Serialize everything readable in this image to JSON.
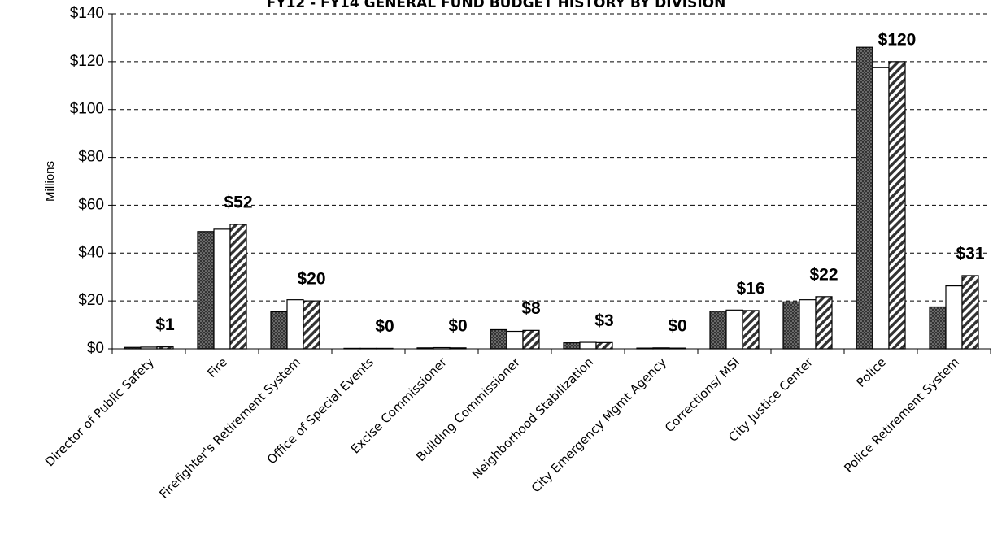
{
  "chart_data": {
    "type": "bar",
    "title": "FY12 - FY14 GENERAL FUND BUDGET HISTORY BY DIVISION",
    "y_label": "Millions",
    "categories": [
      "Director of Public Safety",
      "Fire",
      "Firefighter's Retirement System",
      "Office of Special Events",
      "Excise Commissioner",
      "Building Commissioner",
      "Neighborhood Stabilization",
      "City Emergency Mgmt Agency",
      "Corrections/ MSI",
      "City Justice Center",
      "Police",
      "Police Retirement System"
    ],
    "series": [
      {
        "color": "#555555",
        "pattern": "dots",
        "values": [
          0.6,
          49,
          15.5,
          0.2,
          0.4,
          8,
          2.5,
          0.3,
          15.7,
          19.6,
          126,
          17.5
        ]
      },
      {
        "color": "#ffffff",
        "pattern": "none",
        "values": [
          0.7,
          50,
          20.5,
          0.2,
          0.5,
          7.3,
          2.7,
          0.4,
          16.2,
          20.5,
          117.5,
          26.3
        ]
      },
      {
        "color": "#444444",
        "pattern": "hatch",
        "values": [
          0.8,
          52,
          20,
          0.2,
          0.4,
          7.7,
          2.6,
          0.3,
          16,
          21.8,
          120,
          30.6
        ],
        "value_labels": [
          "$1",
          "$52",
          "$20",
          "$0",
          "$0",
          "$8",
          "$3",
          "$0",
          "$16",
          "$22",
          "$120",
          "$31"
        ]
      }
    ],
    "ylim": [
      0,
      140
    ],
    "yticks": [
      {
        "value": 0,
        "label": "$0"
      },
      {
        "value": 20,
        "label": "$20"
      },
      {
        "value": 40,
        "label": "$40"
      },
      {
        "value": 60,
        "label": "$60"
      },
      {
        "value": 80,
        "label": "$80"
      },
      {
        "value": 100,
        "label": "$100"
      },
      {
        "value": 120,
        "label": "$120"
      },
      {
        "value": 140,
        "label": "$140"
      }
    ],
    "grid": true
  }
}
